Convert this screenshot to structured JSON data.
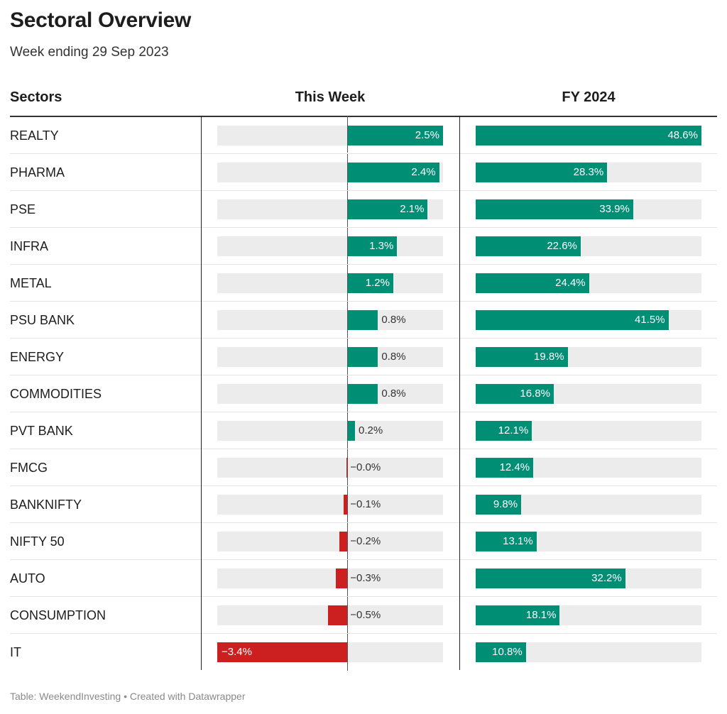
{
  "header": {
    "title": "Sectoral Overview",
    "subtitle": "Week ending 29 Sep 2023",
    "col_sectors": "Sectors",
    "col_week": "This Week",
    "col_fy": "FY 2024"
  },
  "footer": "Table: WeekendInvesting • Created with Datawrapper",
  "colors": {
    "positive": "#008e75",
    "negative": "#cc1f1f",
    "track": "#ececec"
  },
  "chart_data": {
    "type": "bar",
    "title": "Sectoral Overview",
    "subtitle": "Week ending 29 Sep 2023",
    "categories": [
      "REALTY",
      "PHARMA",
      "PSE",
      "INFRA",
      "METAL",
      "PSU BANK",
      "ENERGY",
      "COMMODITIES",
      "PVT BANK",
      "FMCG",
      "BANKNIFTY",
      "NIFTY 50",
      "AUTO",
      "CONSUMPTION",
      "IT"
    ],
    "series": [
      {
        "name": "This Week",
        "values": [
          2.5,
          2.4,
          2.1,
          1.3,
          1.2,
          0.8,
          0.8,
          0.8,
          0.2,
          -0.03,
          -0.1,
          -0.2,
          -0.3,
          -0.5,
          -3.4
        ],
        "labels": [
          "2.5%",
          "2.4%",
          "2.1%",
          "1.3%",
          "1.2%",
          "0.8%",
          "0.8%",
          "0.8%",
          "0.2%",
          "−0.0%",
          "−0.1%",
          "−0.2%",
          "−0.3%",
          "−0.5%",
          "−3.4%"
        ],
        "range": [
          -3.4,
          2.5
        ]
      },
      {
        "name": "FY 2024",
        "values": [
          48.6,
          28.3,
          33.9,
          22.6,
          24.4,
          41.5,
          19.8,
          16.8,
          12.1,
          12.4,
          9.8,
          13.1,
          32.2,
          18.1,
          10.8
        ],
        "labels": [
          "48.6%",
          "28.3%",
          "33.9%",
          "22.6%",
          "24.4%",
          "41.5%",
          "19.8%",
          "16.8%",
          "12.1%",
          "12.4%",
          "9.8%",
          "13.1%",
          "32.2%",
          "18.1%",
          "10.8%"
        ],
        "range": [
          0,
          48.6
        ]
      }
    ]
  }
}
